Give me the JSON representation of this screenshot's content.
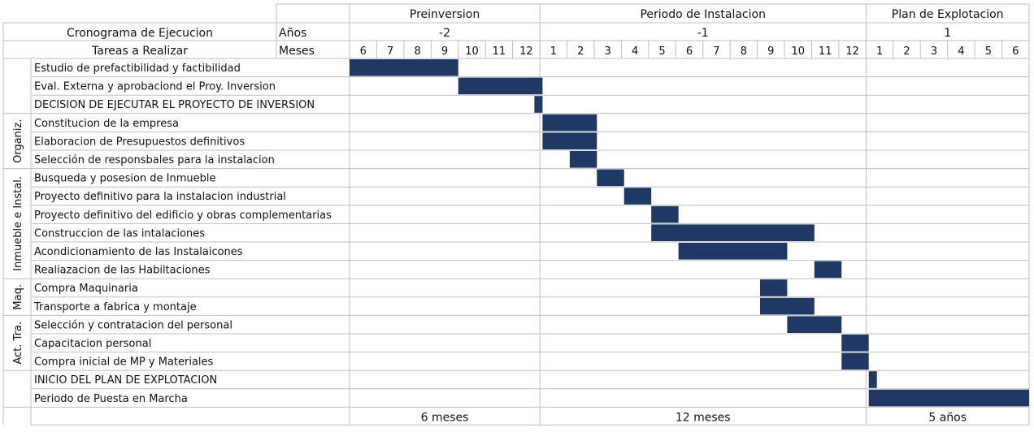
{
  "chart_data": {
    "type": "gantt",
    "title": "Cronograma de Ejecucion",
    "row_header_label": "Tareas a Realizar",
    "years_label": "Años",
    "months_label": "Meses",
    "bar_color": "#1f3864",
    "grid_color": "#bfbfbf",
    "phases": [
      {
        "name": "Preinversion",
        "year": "-2",
        "months": [
          "6",
          "7",
          "8",
          "9",
          "10",
          "11",
          "12"
        ],
        "duration": "6 meses"
      },
      {
        "name": "Periodo de Instalacion",
        "year": "-1",
        "months": [
          "1",
          "2",
          "3",
          "4",
          "5",
          "6",
          "7",
          "8",
          "9",
          "10",
          "11",
          "12"
        ],
        "duration": "12 meses"
      },
      {
        "name": "Plan de Explotacion",
        "year": "1",
        "months": [
          "1",
          "2",
          "3",
          "4",
          "5",
          "6"
        ],
        "duration": "5 años"
      }
    ],
    "groups": [
      {
        "label": "",
        "rows": [
          0,
          2
        ]
      },
      {
        "label": "Organiz.",
        "rows": [
          3,
          5
        ]
      },
      {
        "label": "Inmueble e Instal.",
        "rows": [
          6,
          11
        ]
      },
      {
        "label": "Maq.",
        "rows": [
          12,
          13
        ]
      },
      {
        "label": "Act. Tra.",
        "rows": [
          14,
          16
        ]
      },
      {
        "label": "",
        "rows": [
          17,
          18
        ]
      }
    ],
    "tasks": [
      {
        "name": "Estudio de prefactibilidad y factibilidad",
        "start": 0,
        "end": 4
      },
      {
        "name": "Eval. Externa y aprobaciond el Proy. Inversion",
        "start": 4,
        "end": 7.1
      },
      {
        "name": "DECISION DE EJECUTAR EL PROYECTO DE INVERSION",
        "start": 6.8,
        "end": 7.1
      },
      {
        "name": "Constitucion de la empresa",
        "start": 7.1,
        "end": 9.1
      },
      {
        "name": "Elaboracion de Presupuestos definitivos",
        "start": 7.1,
        "end": 9.1
      },
      {
        "name": "Selección de responsbales para la instalacion",
        "start": 8.1,
        "end": 9.1
      },
      {
        "name": "Busqueda y posesion de Inmueble",
        "start": 9.1,
        "end": 10.1
      },
      {
        "name": "Proyecto definitivo para la instalacion industrial",
        "start": 10.1,
        "end": 11.1
      },
      {
        "name": "Proyecto definitivo del edificio y obras complementarias",
        "start": 11.1,
        "end": 12.1
      },
      {
        "name": "Construccion de las intalaciones",
        "start": 11.1,
        "end": 17.1
      },
      {
        "name": "Acondicionamiento de las Instalaicones",
        "start": 12.1,
        "end": 16.1
      },
      {
        "name": "Realiazacion de las Habiltaciones",
        "start": 17.1,
        "end": 18.1
      },
      {
        "name": "Compra Maquinaria",
        "start": 15.1,
        "end": 16.1
      },
      {
        "name": "Transporte a fabrica y montaje",
        "start": 15.1,
        "end": 17.1
      },
      {
        "name": "Selección y contratacion del personal",
        "start": 16.1,
        "end": 18.1
      },
      {
        "name": "Capacitacion personal",
        "start": 18.1,
        "end": 19.1
      },
      {
        "name": "Compra inicial de MP y Materiales",
        "start": 18.1,
        "end": 19.1
      },
      {
        "name": "INICIO DEL PLAN DE EXPLOTACION",
        "start": 19.1,
        "end": 19.4
      },
      {
        "name": "Periodo de Puesta en Marcha",
        "start": 19.1,
        "end": 25.2
      }
    ]
  }
}
